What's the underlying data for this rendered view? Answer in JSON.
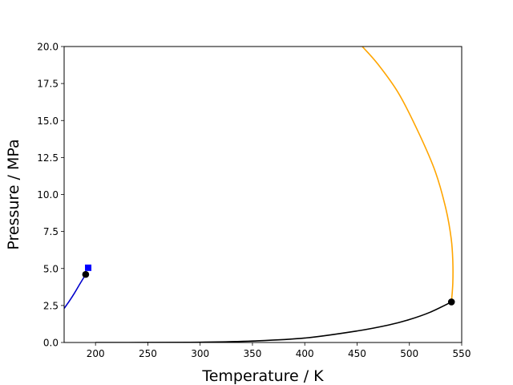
{
  "chart_data": {
    "type": "line",
    "title": "",
    "xlabel": "Temperature / K",
    "ylabel": "Pressure / MPa",
    "xlim": [
      170,
      550
    ],
    "ylim": [
      0,
      20
    ],
    "xticks": [
      200,
      250,
      300,
      350,
      400,
      450,
      500,
      550
    ],
    "yticks": [
      0.0,
      2.5,
      5.0,
      7.5,
      10.0,
      12.5,
      15.0,
      17.5,
      20.0
    ],
    "grid": false,
    "series": [
      {
        "color": "#0000cc",
        "style": "line",
        "x": [
          170,
          175,
          180,
          185,
          190.6
        ],
        "y": [
          2.3,
          2.8,
          3.35,
          3.95,
          4.6
        ]
      },
      {
        "color": "#000000",
        "style": "line",
        "x": [
          200,
          250,
          300,
          350,
          400,
          450,
          480,
          500,
          520,
          540.2
        ],
        "y": [
          0.0,
          0.002,
          0.02,
          0.1,
          0.3,
          0.78,
          1.18,
          1.55,
          2.05,
          2.74
        ]
      },
      {
        "color": "#ffa500",
        "style": "line",
        "x": [
          540.2,
          541.5,
          541.5,
          540,
          535,
          525,
          510,
          490,
          470,
          455
        ],
        "y": [
          2.74,
          4.0,
          5.5,
          7.0,
          9.0,
          11.5,
          14.0,
          16.8,
          18.8,
          20.0
        ]
      },
      {
        "color": "#000000",
        "style": "marker-circle",
        "x": [
          190.6,
          540.2
        ],
        "y": [
          4.6,
          2.74
        ]
      },
      {
        "color": "#0000ff",
        "style": "marker-square",
        "x": [
          193
        ],
        "y": [
          5.05
        ]
      }
    ]
  }
}
